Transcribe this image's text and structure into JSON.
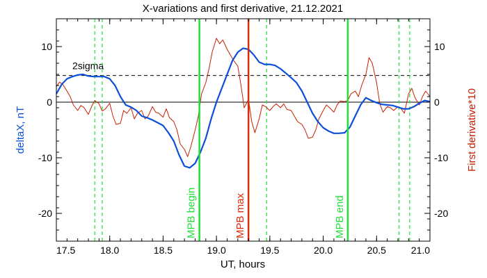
{
  "chart_data": {
    "type": "line",
    "title": "X-variations and first derivative, 21.12.2021",
    "xlabel": "UT, hours",
    "ylabel_left": "deltaX, nT",
    "ylabel_right": "First derivative*10",
    "xlim": [
      17.5,
      21.0
    ],
    "ylim": [
      -25,
      15
    ],
    "x_ticks": [
      {
        "value": 17.5,
        "label": "17.5"
      },
      {
        "value": 18.0,
        "label": "18.0"
      },
      {
        "value": 18.5,
        "label": "18.5"
      },
      {
        "value": 19.0,
        "label": "19.0"
      },
      {
        "value": 19.5,
        "label": "19.5"
      },
      {
        "value": 20.0,
        "label": "20.0"
      },
      {
        "value": 20.5,
        "label": "20.5"
      },
      {
        "value": 21.0,
        "label": "21.0"
      }
    ],
    "y_ticks": [
      {
        "value": 10,
        "label": "10"
      },
      {
        "value": 0,
        "label": "0"
      },
      {
        "value": -10,
        "label": "-10"
      },
      {
        "value": -20,
        "label": "-20"
      }
    ],
    "colors": {
      "deltaX": "#0b4fd8",
      "derivative": "#c81e00",
      "mpb_green": "#22e03a",
      "mpb_red": "#dd2a0a",
      "dash_green": "#22e03a",
      "sigma_line": "#000000",
      "zero_line": "#000000",
      "ylabel_left_color": "#0b4fd8",
      "ylabel_right_color": "#c81e00"
    },
    "threshold": {
      "label": "2sigma",
      "value": 4.8
    },
    "vertical_markers": [
      {
        "x": 18.84,
        "label": "MPB begin",
        "kind": "green"
      },
      {
        "x": 19.3,
        "label": "MPB max",
        "kind": "red"
      },
      {
        "x": 20.23,
        "label": "MPB end",
        "kind": "green"
      }
    ],
    "dashed_markers": [
      17.86,
      17.93,
      19.47,
      20.71,
      20.81
    ],
    "series": [
      {
        "key": "deltaX",
        "x": [
          17.5,
          17.55,
          17.6,
          17.65,
          17.7,
          17.75,
          17.8,
          17.85,
          17.9,
          17.95,
          18.0,
          18.05,
          18.1,
          18.15,
          18.2,
          18.25,
          18.3,
          18.35,
          18.4,
          18.45,
          18.5,
          18.55,
          18.6,
          18.65,
          18.7,
          18.75,
          18.8,
          18.85,
          18.9,
          18.95,
          19.0,
          19.05,
          19.1,
          19.15,
          19.2,
          19.25,
          19.3,
          19.35,
          19.4,
          19.45,
          19.5,
          19.55,
          19.6,
          19.65,
          19.7,
          19.75,
          19.8,
          19.85,
          19.9,
          19.95,
          20.0,
          20.05,
          20.1,
          20.15,
          20.2,
          20.25,
          20.3,
          20.35,
          20.4,
          20.45,
          20.5,
          20.55,
          20.6,
          20.65,
          20.7,
          20.75,
          20.8,
          20.85,
          20.9,
          20.95,
          21.0
        ],
        "values": [
          1.5,
          3.2,
          4.2,
          4.6,
          4.9,
          5.0,
          4.7,
          4.6,
          4.6,
          4.6,
          4.2,
          3.0,
          1.0,
          -0.5,
          -0.9,
          -1.5,
          -2.5,
          -2.8,
          -3.2,
          -3.7,
          -4.2,
          -5.5,
          -7.0,
          -9.5,
          -11.5,
          -11.8,
          -11.0,
          -9.0,
          -6.5,
          -3.0,
          0.0,
          2.5,
          5.0,
          7.5,
          9.0,
          9.7,
          9.5,
          8.5,
          7.2,
          6.8,
          6.8,
          6.6,
          6.0,
          5.2,
          4.4,
          3.5,
          2.0,
          0.0,
          -2.0,
          -3.5,
          -4.6,
          -5.2,
          -5.6,
          -5.6,
          -5.5,
          -4.5,
          -2.5,
          -0.5,
          0.8,
          0.3,
          -0.1,
          -0.4,
          -0.5,
          -0.6,
          -0.9,
          -1.2,
          -1.2,
          -0.8,
          -0.2,
          0.3,
          0.1
        ]
      },
      {
        "key": "derivative",
        "x": [
          17.5,
          17.53,
          17.56,
          17.6,
          17.63,
          17.66,
          17.7,
          17.73,
          17.76,
          17.8,
          17.83,
          17.86,
          17.9,
          17.93,
          17.96,
          18.0,
          18.03,
          18.06,
          18.1,
          18.13,
          18.16,
          18.2,
          18.23,
          18.26,
          18.3,
          18.33,
          18.36,
          18.4,
          18.43,
          18.46,
          18.5,
          18.53,
          18.56,
          18.6,
          18.63,
          18.66,
          18.7,
          18.73,
          18.76,
          18.8,
          18.83,
          18.86,
          18.9,
          18.93,
          18.96,
          19.0,
          19.03,
          19.06,
          19.1,
          19.13,
          19.16,
          19.2,
          19.23,
          19.26,
          19.3,
          19.33,
          19.36,
          19.4,
          19.43,
          19.46,
          19.5,
          19.53,
          19.56,
          19.6,
          19.63,
          19.66,
          19.7,
          19.73,
          19.76,
          19.8,
          19.83,
          19.86,
          19.9,
          19.93,
          19.96,
          20.0,
          20.03,
          20.06,
          20.1,
          20.13,
          20.16,
          20.2,
          20.23,
          20.26,
          20.3,
          20.33,
          20.36,
          20.4,
          20.43,
          20.46,
          20.5,
          20.53,
          20.56,
          20.6,
          20.63,
          20.66,
          20.7,
          20.73,
          20.76,
          20.8,
          20.83,
          20.86,
          20.9,
          20.93,
          20.96,
          21.0
        ],
        "values": [
          2.8,
          3.6,
          3.2,
          2.0,
          1.0,
          -0.5,
          -1.5,
          -0.6,
          -1.0,
          -2.2,
          -0.8,
          0.3,
          -0.3,
          -1.6,
          -1.2,
          -0.2,
          -2.5,
          -4.0,
          -3.8,
          -1.5,
          -2.0,
          -1.0,
          -3.0,
          -2.0,
          -1.5,
          -3.0,
          -2.5,
          -0.8,
          -1.8,
          -2.0,
          -2.7,
          -1.2,
          -2.8,
          -3.5,
          -5.0,
          -7.5,
          -8.5,
          -9.8,
          -8.0,
          -5.0,
          -2.5,
          1.5,
          3.5,
          6.0,
          9.0,
          11.5,
          10.5,
          11.2,
          9.5,
          8.5,
          7.5,
          6.5,
          3.0,
          -1.0,
          0.5,
          -3.5,
          -5.5,
          -3.0,
          -0.5,
          -0.8,
          -1.5,
          -0.8,
          -0.3,
          -1.0,
          -0.3,
          -1.3,
          -1.5,
          -2.5,
          -3.5,
          -4.0,
          -5.0,
          -6.5,
          -6.3,
          -5.0,
          -3.0,
          -1.5,
          -0.5,
          -1.0,
          -1.8,
          -0.5,
          0.2,
          0.1,
          0.3,
          1.5,
          2.0,
          1.0,
          3.0,
          5.0,
          8.0,
          7.0,
          3.5,
          -0.3,
          -1.8,
          -0.8,
          -1.0,
          -1.5,
          -0.8,
          -1.2,
          -2.0,
          1.5,
          2.5,
          0.8,
          -0.5,
          1.0,
          2.0,
          1.0
        ]
      }
    ]
  }
}
